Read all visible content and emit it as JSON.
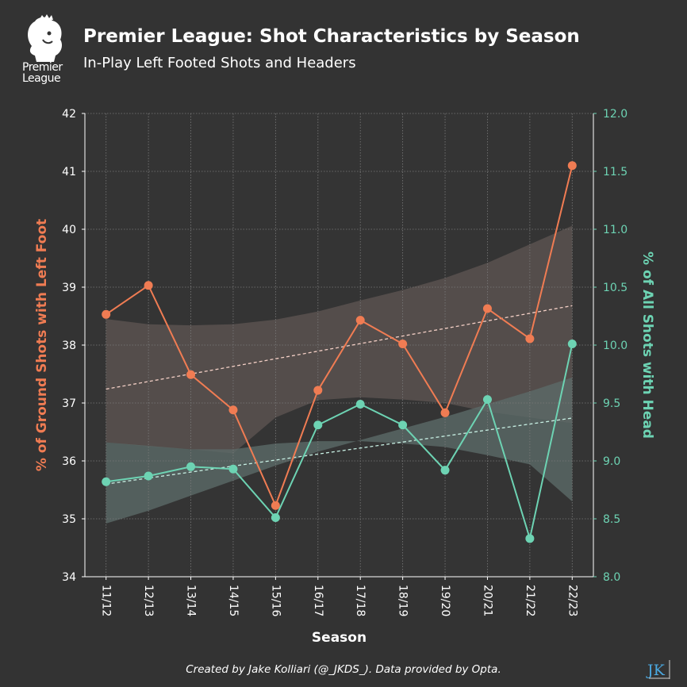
{
  "header": {
    "logo_text_line1": "Premier",
    "logo_text_line2": "League",
    "title": "Premier League: Shot Characteristics by Season",
    "subtitle": "In-Play Left Footed Shots and Headers"
  },
  "footer": {
    "credit": "Created by Jake Kolliari (@_JKDS_). Data provided by Opta.",
    "mark": "JK"
  },
  "colors": {
    "background": "#333333",
    "left_series": "#f07c53",
    "right_series": "#6dd3b3",
    "left_band": "#5a5250",
    "right_band": "#5b6a68",
    "grid": "#7a7a7a",
    "axis_text": "#ffffff"
  },
  "chart_data": {
    "type": "line",
    "categories": [
      "11/12",
      "12/13",
      "13/14",
      "14/15",
      "15/16",
      "16/17",
      "17/18",
      "18/19",
      "19/20",
      "20/21",
      "21/22",
      "22/23"
    ],
    "xlabel": "Season",
    "ylabel_left": "% of Ground Shots with Left Foot",
    "ylabel_right": "% of All Shots with Head",
    "ylim_left": [
      34,
      42
    ],
    "ylim_right": [
      8.0,
      12.0
    ],
    "yticks_left": [
      "34",
      "35",
      "36",
      "37",
      "38",
      "39",
      "40",
      "41",
      "42"
    ],
    "yticks_right": [
      "8.0",
      "8.5",
      "9.0",
      "9.5",
      "10.0",
      "10.5",
      "11.0",
      "11.5",
      "12.0"
    ],
    "grid": true,
    "series": [
      {
        "name": "% of Ground Shots with Left Foot",
        "axis": "left",
        "values": [
          38.53,
          39.03,
          37.49,
          36.88,
          35.23,
          37.22,
          38.43,
          38.02,
          36.83,
          38.63,
          38.11,
          41.1
        ],
        "trend": [
          37.24,
          38.68
        ],
        "band_upper": [
          38.45,
          38.36,
          38.34,
          38.36,
          38.44,
          38.58,
          38.77,
          38.95,
          39.16,
          39.42,
          39.74,
          40.06
        ],
        "band_lower": [
          36.32,
          36.25,
          36.2,
          36.13,
          36.75,
          37.05,
          37.1,
          37.06,
          37.0,
          36.85,
          36.75,
          36.65
        ]
      },
      {
        "name": "% of All Shots with Head",
        "axis": "right",
        "values": [
          8.82,
          8.87,
          8.95,
          8.93,
          8.51,
          9.31,
          9.49,
          9.31,
          8.92,
          9.53,
          8.33,
          10.01
        ],
        "trend": [
          8.8,
          9.37
        ],
        "band_upper": [
          8.46,
          8.57,
          8.7,
          8.83,
          8.96,
          9.08,
          9.18,
          9.28,
          9.38,
          9.49,
          9.6,
          9.72
        ],
        "band_lower": [
          9.16,
          9.13,
          9.1,
          9.1,
          9.15,
          9.17,
          9.17,
          9.15,
          9.12,
          9.05,
          8.97,
          8.65
        ]
      }
    ]
  }
}
